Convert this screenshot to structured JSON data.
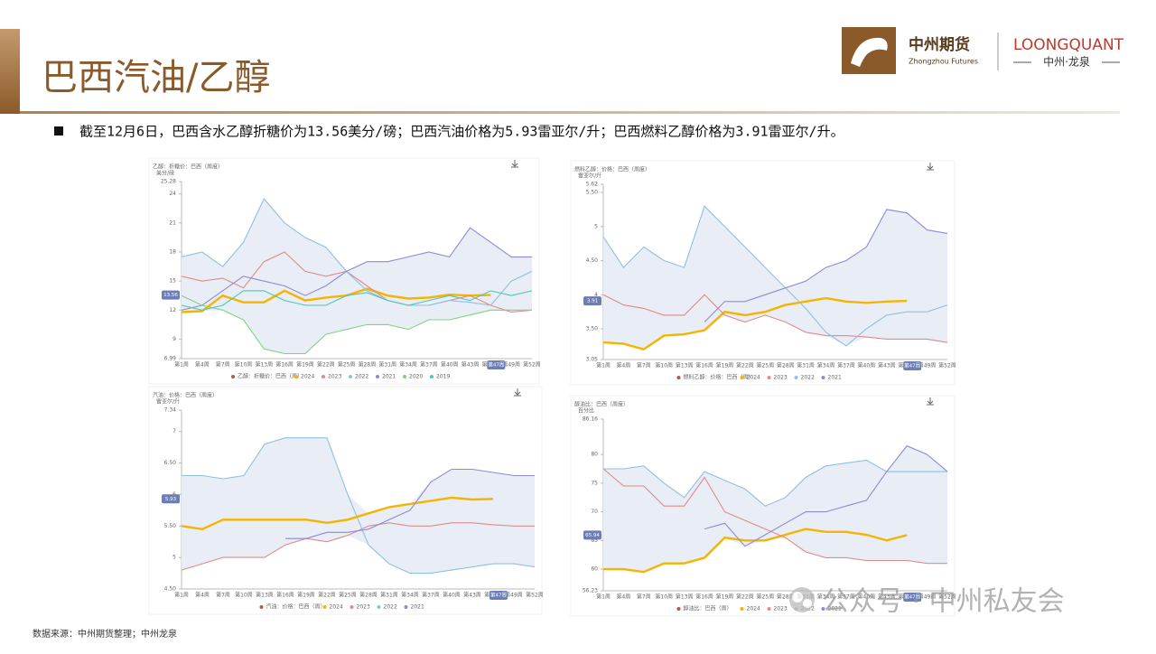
{
  "header": {
    "title": "巴西汽油/乙醇",
    "logo_cn": "中州期货",
    "logo_en": "Zhongzhou Futures",
    "brand": "LOONGQUANT",
    "brand_cn": "中州·龙泉"
  },
  "bullet": "截至12月6日，巴西含水乙醇折糖价为13.56美分/磅；巴西汽油价格为5.93雷亚尔/升；巴西燃料乙醇价格为3.91雷亚尔/升。",
  "source": "数据来源：中州期货整理；中州龙泉",
  "watermark": "公众号 · 中州私友会",
  "chart_data": [
    {
      "type": "line",
      "title": "乙醇：折糖价：巴西（周度）",
      "y_unit": "美分/磅",
      "legend_label": "乙醇：折糖价：巴西（周）",
      "categories": [
        "第1周",
        "第4周",
        "第7周",
        "第10周",
        "第13周",
        "第16周",
        "第19周",
        "第22周",
        "第25周",
        "第28周",
        "第31周",
        "第34周",
        "第37周",
        "第40周",
        "第43周",
        "第46周",
        "第49周",
        "第52周"
      ],
      "x_highlight": "第47周",
      "current": 13.56,
      "ylim": [
        6.99,
        25.28
      ],
      "yticks": [
        6.99,
        9,
        12,
        15,
        18,
        21,
        24,
        25.28
      ],
      "range_band": true,
      "series": [
        {
          "name": "2024",
          "color": "#f5b400",
          "values": [
            11.8,
            11.9,
            13.5,
            12.8,
            12.8,
            14.0,
            13.0,
            13.3,
            13.5,
            14.2,
            13.5,
            13.2,
            13.3,
            13.6,
            13.5,
            13.56,
            null,
            null
          ]
        },
        {
          "name": "2023",
          "color": "#e08a8a",
          "values": [
            15.5,
            15.0,
            15.3,
            14.3,
            17.0,
            18.0,
            16.0,
            15.5,
            16.0,
            14.5,
            13.0,
            12.5,
            12.5,
            13.0,
            13.5,
            12.5,
            11.8,
            12.0
          ]
        },
        {
          "name": "2022",
          "color": "#8fc0de",
          "values": [
            17.5,
            18.0,
            16.5,
            19.0,
            23.5,
            21.0,
            19.5,
            18.5,
            16.0,
            14.0,
            13.0,
            12.5,
            12.5,
            13.0,
            12.8,
            12.5,
            15.0,
            16.0
          ]
        },
        {
          "name": "2021",
          "color": "#8e8ad6",
          "values": [
            12.0,
            12.5,
            14.0,
            15.5,
            15.0,
            14.5,
            13.5,
            14.5,
            16.0,
            17.0,
            17.0,
            17.5,
            18.0,
            17.5,
            20.5,
            19.0,
            17.5,
            17.5
          ]
        },
        {
          "name": "2020",
          "color": "#7fd47f",
          "values": [
            13.5,
            12.5,
            12.0,
            11.0,
            8.0,
            7.5,
            7.5,
            9.5,
            10.0,
            10.5,
            10.5,
            10.0,
            11.0,
            11.0,
            11.5,
            12.0,
            12.0,
            12.0
          ]
        },
        {
          "name": "2019",
          "color": "#4cc7b3",
          "values": [
            12.5,
            12.0,
            12.5,
            14.0,
            14.0,
            13.0,
            12.5,
            12.5,
            13.5,
            13.8,
            13.0,
            12.5,
            13.0,
            13.5,
            13.0,
            14.0,
            13.5,
            14.0
          ]
        }
      ]
    },
    {
      "type": "line",
      "title": "燃料乙醇：价格：巴西（周度）",
      "y_unit": "雷亚尔/升",
      "legend_label": "燃料乙醇：价格：巴西（周）",
      "categories": [
        "第1周",
        "第4周",
        "第7周",
        "第10周",
        "第13周",
        "第16周",
        "第19周",
        "第22周",
        "第25周",
        "第28周",
        "第31周",
        "第34周",
        "第37周",
        "第40周",
        "第43周",
        "第46周",
        "第49周",
        "第52周"
      ],
      "x_highlight": "第47周",
      "current": 3.91,
      "ylim": [
        3.05,
        5.62
      ],
      "yticks": [
        3.05,
        {
          "value": 3.5,
          "label": "3.50"
        },
        4,
        {
          "value": 4.5,
          "label": "4.50"
        },
        5,
        {
          "value": 5.5,
          "label": "5.50"
        },
        5.62
      ],
      "range_band": true,
      "series": [
        {
          "name": "2024",
          "color": "#f5b400",
          "values": [
            3.3,
            3.28,
            3.2,
            3.4,
            3.42,
            3.48,
            3.75,
            3.7,
            3.75,
            3.85,
            3.9,
            3.95,
            3.9,
            3.88,
            3.9,
            3.91,
            null,
            null
          ]
        },
        {
          "name": "2023",
          "color": "#e08a8a",
          "values": [
            4.0,
            3.85,
            3.8,
            3.7,
            3.7,
            4.0,
            3.7,
            3.6,
            3.7,
            3.6,
            3.45,
            3.4,
            3.4,
            3.38,
            3.35,
            3.35,
            3.35,
            3.3
          ]
        },
        {
          "name": "2022",
          "color": "#8fc0de",
          "values": [
            4.85,
            4.4,
            4.7,
            4.5,
            4.4,
            5.3,
            5.0,
            4.7,
            4.4,
            4.1,
            3.8,
            3.45,
            3.25,
            3.5,
            3.7,
            3.75,
            3.75,
            3.85
          ]
        },
        {
          "name": "2021",
          "color": "#8e8ad6",
          "values": [
            null,
            null,
            null,
            null,
            null,
            3.6,
            3.9,
            3.9,
            4.0,
            4.1,
            4.2,
            4.4,
            4.5,
            4.7,
            5.25,
            5.2,
            4.95,
            4.9
          ]
        }
      ]
    },
    {
      "type": "line",
      "title": "汽油：价格：巴西（周度）",
      "y_unit": "雷亚尔/升",
      "legend_label": "汽油：价格：巴西（周）",
      "categories": [
        "第1周",
        "第4周",
        "第7周",
        "第10周",
        "第13周",
        "第16周",
        "第19周",
        "第22周",
        "第25周",
        "第28周",
        "第31周",
        "第34周",
        "第37周",
        "第40周",
        "第43周",
        "第46周",
        "第49周",
        "第52周"
      ],
      "x_highlight": "第47周",
      "current": 5.93,
      "ylim": [
        4.5,
        7.34
      ],
      "yticks": [
        {
          "value": 4.5,
          "label": "4.50"
        },
        5,
        {
          "value": 5.5,
          "label": "5.50"
        },
        6,
        {
          "value": 6.5,
          "label": "6.50"
        },
        7,
        7.34
      ],
      "range_band": true,
      "series": [
        {
          "name": "2024",
          "color": "#f5b400",
          "values": [
            5.5,
            5.45,
            5.6,
            5.6,
            5.6,
            5.6,
            5.6,
            5.55,
            5.6,
            5.7,
            5.8,
            5.85,
            5.9,
            5.95,
            5.92,
            5.93,
            null,
            null
          ]
        },
        {
          "name": "2023",
          "color": "#e08a8a",
          "values": [
            4.8,
            4.9,
            5.0,
            5.0,
            5.0,
            5.2,
            5.3,
            5.25,
            5.35,
            5.5,
            5.55,
            5.5,
            5.5,
            5.55,
            5.55,
            5.52,
            5.5,
            5.5
          ]
        },
        {
          "name": "2022",
          "color": "#8fc0de",
          "values": [
            6.3,
            6.3,
            6.25,
            6.3,
            6.8,
            6.9,
            6.9,
            6.9,
            6.0,
            5.2,
            4.9,
            4.75,
            4.75,
            4.8,
            4.85,
            4.9,
            4.9,
            4.85
          ]
        },
        {
          "name": "2021",
          "color": "#8e8ad6",
          "values": [
            null,
            null,
            null,
            null,
            null,
            5.3,
            5.3,
            5.4,
            5.4,
            5.45,
            5.6,
            5.75,
            6.2,
            6.4,
            6.4,
            6.35,
            6.3,
            6.3
          ]
        }
      ]
    },
    {
      "type": "line",
      "title": "醇油比：巴西（周度）",
      "y_unit": "百分比",
      "legend_label": "醇油比：巴西（周）",
      "categories": [
        "第1周",
        "第4周",
        "第7周",
        "第10周",
        "第13周",
        "第16周",
        "第19周",
        "第22周",
        "第25周",
        "第28周",
        "第31周",
        "第34周",
        "第37周",
        "第40周",
        "第43周",
        "第46周",
        "第49周",
        "第52周"
      ],
      "x_highlight": "第47周",
      "current": 65.94,
      "ylim": [
        56.23,
        86.16
      ],
      "yticks": [
        56.23,
        60,
        65,
        70,
        75,
        80,
        86.16
      ],
      "range_band": true,
      "series": [
        {
          "name": "2024",
          "color": "#f5b400",
          "values": [
            60,
            60,
            59.5,
            61,
            61,
            62,
            65.5,
            65,
            65,
            66,
            67,
            66.5,
            66.5,
            66,
            65,
            65.94,
            null,
            null
          ]
        },
        {
          "name": "2023",
          "color": "#e08a8a",
          "values": [
            77.5,
            74.5,
            74.5,
            71,
            71,
            76,
            70,
            68.5,
            67,
            65.5,
            63,
            62,
            62,
            61.5,
            61.5,
            61.5,
            61,
            61
          ]
        },
        {
          "name": "2022",
          "color": "#8fc0de",
          "values": [
            77.5,
            77.5,
            78,
            75,
            72.5,
            77,
            75.5,
            74,
            71,
            72.5,
            76,
            78,
            78.5,
            79,
            77,
            77,
            77,
            77
          ]
        },
        {
          "name": "2021",
          "color": "#8e8ad6",
          "values": [
            null,
            null,
            null,
            null,
            null,
            67,
            68,
            64,
            66,
            68,
            70,
            70,
            71,
            72,
            77,
            81.5,
            80,
            77
          ]
        }
      ]
    }
  ]
}
